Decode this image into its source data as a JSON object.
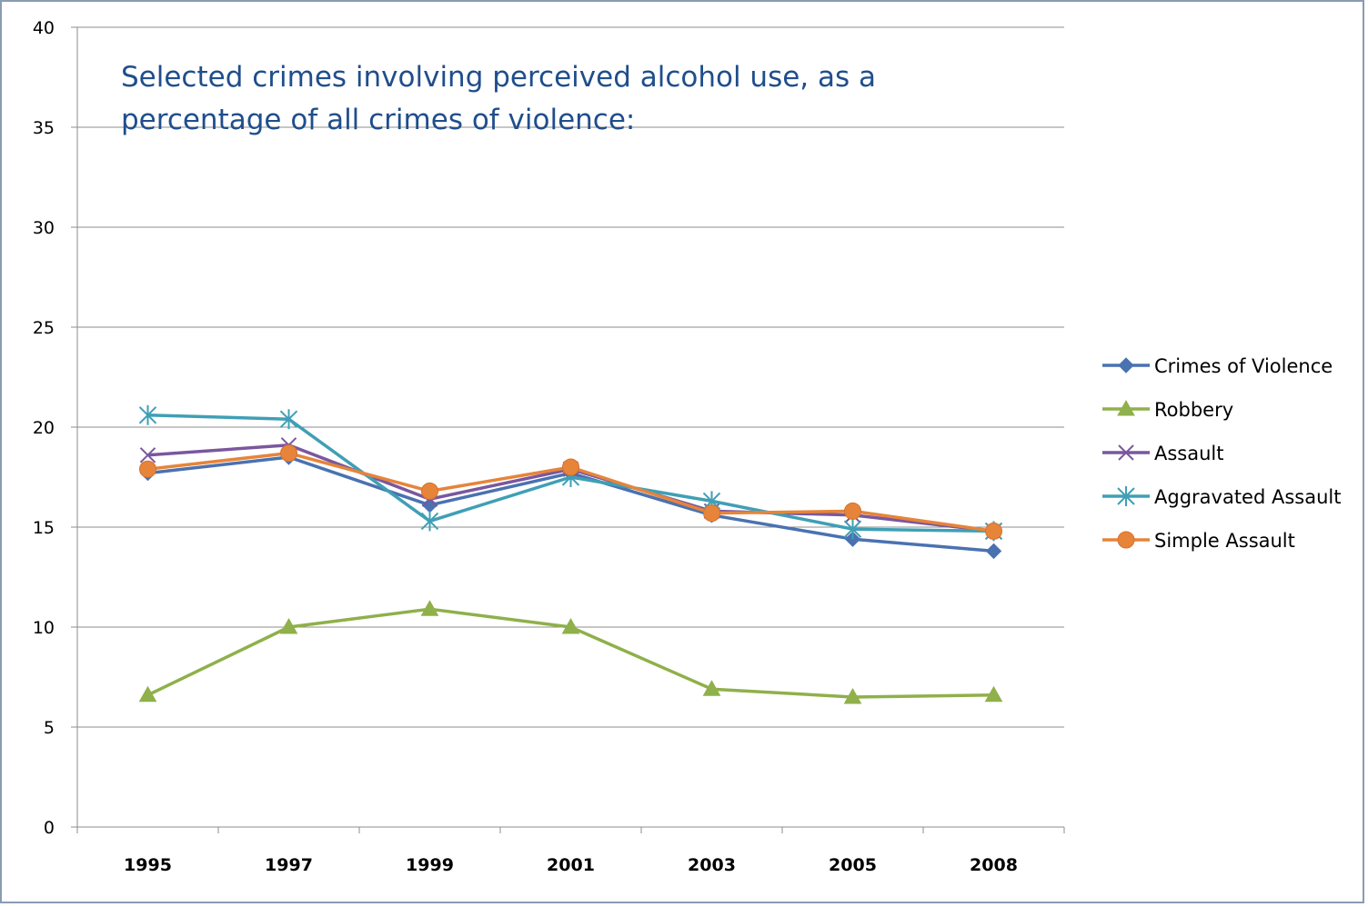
{
  "chart_data": {
    "type": "line",
    "title": "Selected crimes involving perceived alcohol use, as a percentage of all crimes of violence:",
    "title_lines": [
      "Selected crimes involving perceived alcohol use, as a",
      "percentage of all crimes of violence:"
    ],
    "title_color": "#1f4e8c",
    "categories": [
      "1995",
      "1997",
      "1999",
      "2001",
      "2003",
      "2005",
      "2008"
    ],
    "ylim": [
      0,
      40
    ],
    "yticks": [
      0,
      5,
      10,
      15,
      20,
      25,
      30,
      35,
      40
    ],
    "grid": true,
    "legend_position": "right",
    "series": [
      {
        "name": "Crimes of Violence",
        "color": "#4a72b0",
        "marker": "diamond",
        "values": [
          17.7,
          18.5,
          16.1,
          17.7,
          15.6,
          14.4,
          13.8
        ]
      },
      {
        "name": "Robbery",
        "color": "#8fb04a",
        "marker": "triangle",
        "values": [
          6.6,
          10.0,
          10.9,
          10.0,
          6.9,
          6.5,
          6.6
        ]
      },
      {
        "name": "Assault",
        "color": "#7a579e",
        "marker": "x",
        "values": [
          18.6,
          19.1,
          16.4,
          17.9,
          15.8,
          15.6,
          14.8
        ]
      },
      {
        "name": "Aggravated Assault",
        "color": "#3f9fb5",
        "marker": "asterisk",
        "values": [
          20.6,
          20.4,
          15.3,
          17.5,
          16.3,
          14.9,
          14.8
        ]
      },
      {
        "name": "Simple Assault",
        "color": "#e6843a",
        "marker": "circle",
        "values": [
          17.9,
          18.7,
          16.8,
          18.0,
          15.7,
          15.8,
          14.8
        ]
      }
    ]
  }
}
